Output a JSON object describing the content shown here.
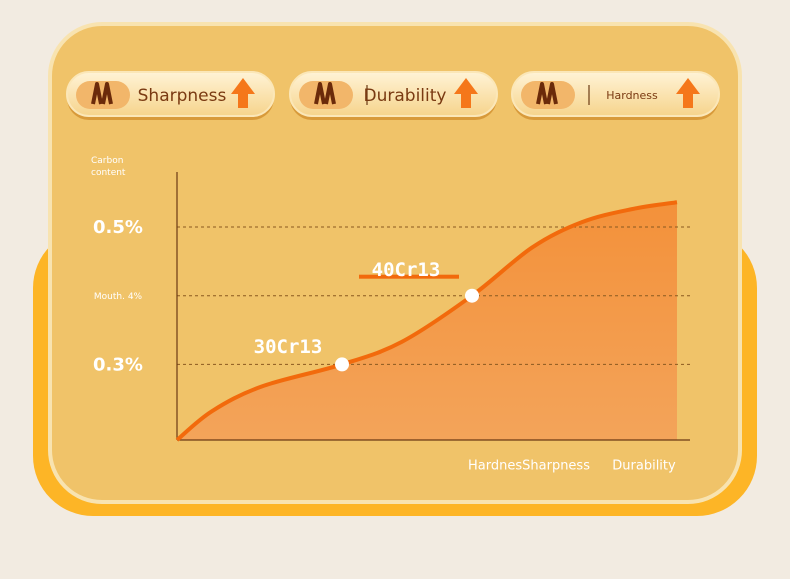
{
  "buttons": [
    "Sharpness",
    "Durability",
    "Hardness"
  ],
  "chart_data": {
    "type": "area",
    "y_label": "Carbon\ncontent",
    "x_labels": [
      "HardnesSharpness",
      "Durability"
    ],
    "x": [
      0,
      7,
      17,
      33,
      45,
      59,
      71,
      81,
      91,
      100
    ],
    "series": [
      {
        "color": "#f26a0c",
        "values": [
          0.19,
          0.232,
          0.268,
          0.3,
          0.333,
          0.4,
          0.47,
          0.507,
          0.526,
          0.536
        ]
      }
    ],
    "annotations": [
      {
        "label": "30Cr13",
        "x": 33,
        "y": 0.3
      },
      {
        "label": "40Cr13",
        "x": 59,
        "y": 0.4
      }
    ],
    "xlim": [
      0,
      100
    ],
    "ylim": [
      0.19,
      0.58
    ],
    "yticks": [
      {
        "value": 0.5,
        "label": "0.5%"
      },
      {
        "value": 0.4,
        "label": "Mouth. 4%"
      },
      {
        "value": 0.3,
        "label": "0.3%"
      }
    ],
    "grid": true
  }
}
